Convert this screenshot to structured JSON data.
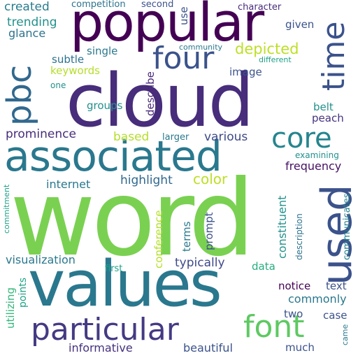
{
  "words": [
    {
      "id": "word",
      "text": "word",
      "color": "#7ad151"
    },
    {
      "id": "cloud",
      "text": "cloud",
      "color": "#472d7b"
    },
    {
      "id": "values",
      "text": "values",
      "color": "#2a788e"
    },
    {
      "id": "popular",
      "text": "popular",
      "color": "#440154"
    },
    {
      "id": "associated",
      "text": "associated",
      "color": "#2a788e"
    },
    {
      "id": "particular",
      "text": "particular",
      "color": "#443a83"
    },
    {
      "id": "used",
      "text": "used",
      "color": "#3b528b"
    },
    {
      "id": "pbc",
      "text": "pbc",
      "color": "#31688e"
    },
    {
      "id": "time",
      "text": "time",
      "color": "#3b528b"
    },
    {
      "id": "four",
      "text": "four",
      "color": "#3b528b"
    },
    {
      "id": "core",
      "text": "core",
      "color": "#25858e"
    },
    {
      "id": "font",
      "text": "font",
      "color": "#5ec962"
    },
    {
      "id": "depicted",
      "text": "depicted",
      "color": "#bddf26"
    },
    {
      "id": "color",
      "text": "color",
      "color": "#bddf26"
    },
    {
      "id": "trending",
      "text": "trending",
      "color": "#21918c"
    },
    {
      "id": "glance",
      "text": "glance",
      "color": "#2c728e"
    },
    {
      "id": "created",
      "text": "created",
      "color": "#287d8e"
    },
    {
      "id": "competition",
      "text": "competition",
      "color": "#2c728e"
    },
    {
      "id": "second",
      "text": "second",
      "color": "#3b528b"
    },
    {
      "id": "character",
      "text": "character",
      "color": "#472d7b"
    },
    {
      "id": "given",
      "text": "given",
      "color": "#3b528b"
    },
    {
      "id": "use",
      "text": "use",
      "color": "#3b528b"
    },
    {
      "id": "community",
      "text": "community",
      "color": "#2a788e"
    },
    {
      "id": "different",
      "text": "different",
      "color": "#1fa187"
    },
    {
      "id": "subtle",
      "text": "subtle",
      "color": "#2c728e"
    },
    {
      "id": "single",
      "text": "single",
      "color": "#2a788e"
    },
    {
      "id": "keywords",
      "text": "keywords",
      "color": "#b5de2b"
    },
    {
      "id": "image",
      "text": "image",
      "color": "#3b528b"
    },
    {
      "id": "one",
      "text": "one",
      "color": "#21918c"
    },
    {
      "id": "groups",
      "text": "groups",
      "color": "#21918c"
    },
    {
      "id": "describe",
      "text": "describe",
      "color": "#482878"
    },
    {
      "id": "belt",
      "text": "belt",
      "color": "#21918c"
    },
    {
      "id": "peach",
      "text": "peach",
      "color": "#46327e"
    },
    {
      "id": "prominence",
      "text": "prominence",
      "color": "#472d7b"
    },
    {
      "id": "based",
      "text": "based",
      "color": "#b5de2b"
    },
    {
      "id": "larger",
      "text": "larger",
      "color": "#2a788e"
    },
    {
      "id": "various",
      "text": "various",
      "color": "#3e4989"
    },
    {
      "id": "examining",
      "text": "examining",
      "color": "#21918c"
    },
    {
      "id": "frequency",
      "text": "frequency",
      "color": "#471164"
    },
    {
      "id": "internet",
      "text": "internet",
      "color": "#2a788e"
    },
    {
      "id": "highlight",
      "text": "highlight",
      "color": "#31688e"
    },
    {
      "id": "constituent",
      "text": "constituent",
      "color": "#21918c"
    },
    {
      "id": "commitment",
      "text": "commitment",
      "color": "#1fa187"
    },
    {
      "id": "communicates",
      "text": "communicates",
      "color": "#26828e"
    },
    {
      "id": "description",
      "text": "description",
      "color": "#2c728e"
    },
    {
      "id": "conference",
      "text": "conference",
      "color": "#b5de2b"
    },
    {
      "id": "terms",
      "text": "terms",
      "color": "#2a788e"
    },
    {
      "id": "prompt",
      "text": "prompt",
      "color": "#3b528b"
    },
    {
      "id": "visualization",
      "text": "visualization",
      "color": "#2a788e"
    },
    {
      "id": "typically",
      "text": "typically",
      "color": "#3e4989"
    },
    {
      "id": "first",
      "text": "first",
      "color": "#1fa187"
    },
    {
      "id": "data",
      "text": "data",
      "color": "#26ad81"
    },
    {
      "id": "utilizing",
      "text": "utilizing",
      "color": "#35b779"
    },
    {
      "id": "points",
      "text": "points",
      "color": "#1fa187"
    },
    {
      "id": "notice",
      "text": "notice",
      "color": "#440154"
    },
    {
      "id": "text",
      "text": "text",
      "color": "#3b528b"
    },
    {
      "id": "commonly",
      "text": "commonly",
      "color": "#2a788e"
    },
    {
      "id": "two",
      "text": "two",
      "color": "#3b528b"
    },
    {
      "id": "case",
      "text": "case",
      "color": "#3b528b"
    },
    {
      "id": "came",
      "text": "came",
      "color": "#2a788e"
    },
    {
      "id": "informative",
      "text": "informative",
      "color": "#46327e"
    },
    {
      "id": "beautiful",
      "text": "beautiful",
      "color": "#3b528b"
    },
    {
      "id": "much",
      "text": "much",
      "color": "#3b528b"
    }
  ]
}
